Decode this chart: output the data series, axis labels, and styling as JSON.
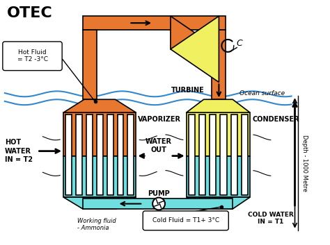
{
  "bg_color": "#ffffff",
  "orange": "#E87830",
  "yellow": "#F0F060",
  "cyan": "#70DEDE",
  "blue_wave": "#3388CC",
  "black": "#000000",
  "labels": {
    "title": "OTEC",
    "vaporizer": "VAPORIZER",
    "condenser": "CONDENSER",
    "turbine": "TURBINE",
    "pump": "PUMP",
    "hot_fluid": "Hot Fluid\n= T2 -3°C",
    "cold_fluid": "Cold Fluid = T1+ 3°C",
    "hot_water": "HOT\nWATER\nIN = T2",
    "cold_water": "COLD WATER\nIN = T1",
    "water_out": "WATER\nOUT",
    "working_fluid": "Working fluid\n- Ammonia",
    "ocean_surface": "Ocean surface",
    "depth": "Depth - 1000 Metre"
  }
}
